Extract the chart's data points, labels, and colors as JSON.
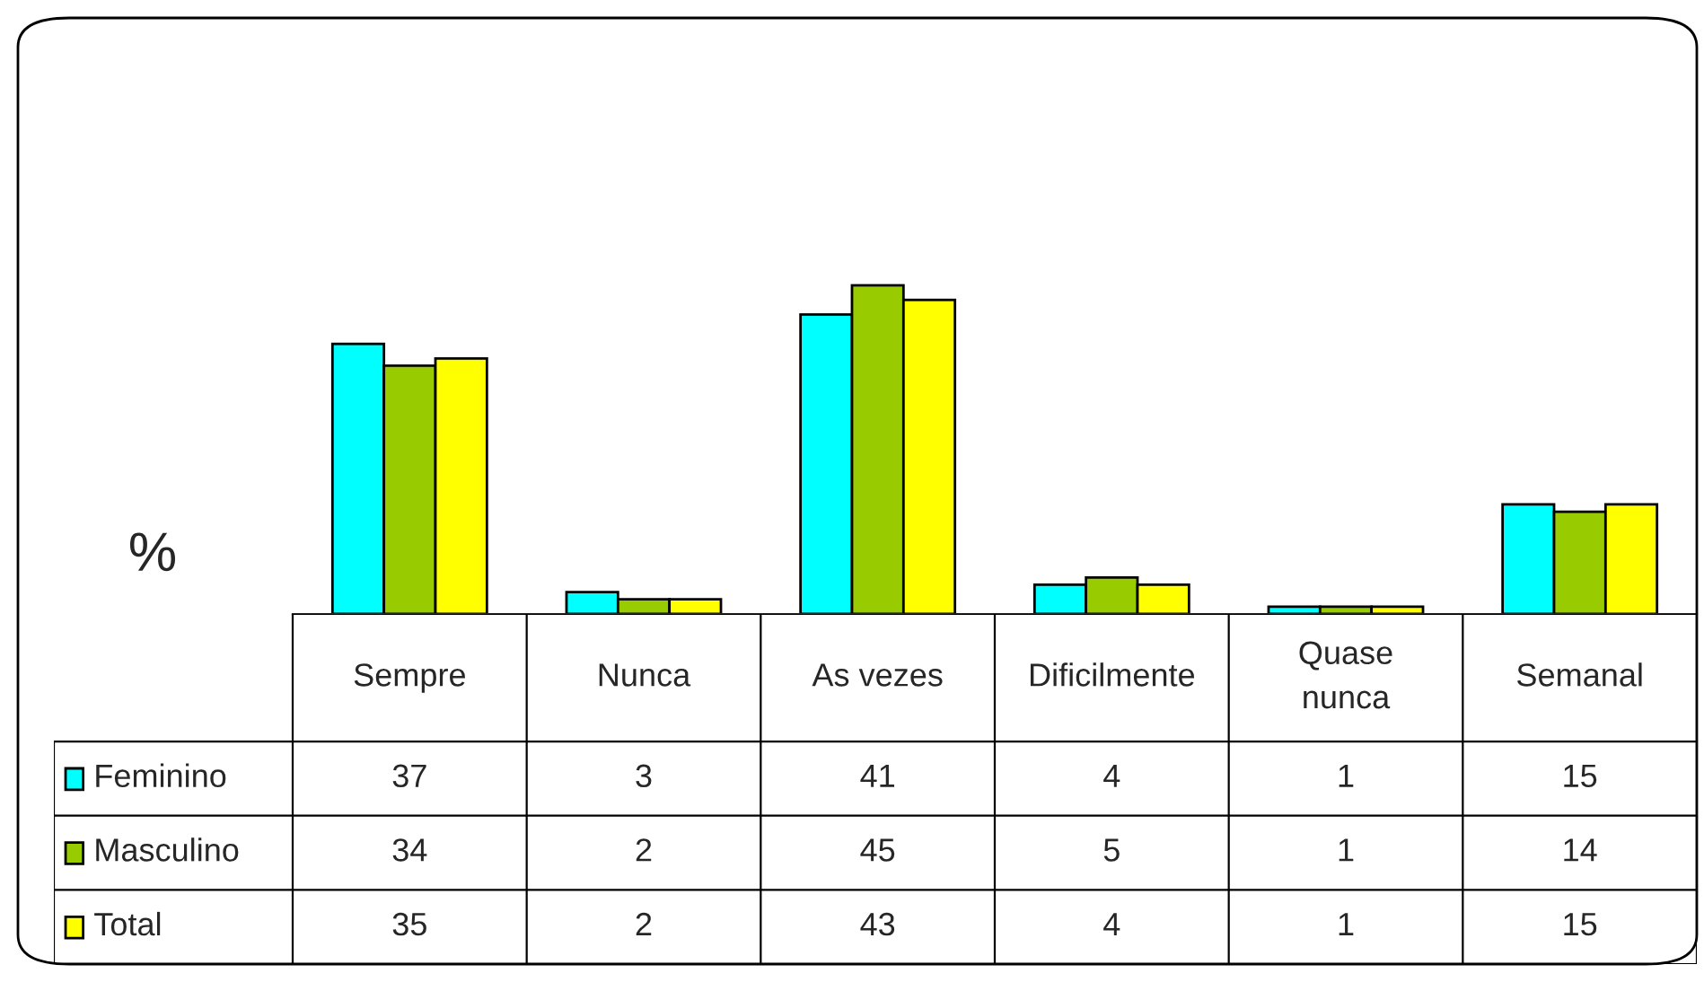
{
  "chart_data": {
    "type": "bar",
    "ylabel": "%",
    "categories": [
      "Sempre",
      "Nunca",
      "As vezes",
      "Dificilmente",
      "Quase nunca",
      "Semanal"
    ],
    "series": [
      {
        "name": "Feminino",
        "color": "#00ffff",
        "values": [
          37,
          3,
          41,
          4,
          1,
          15
        ]
      },
      {
        "name": "Masculino",
        "color": "#99cc00",
        "values": [
          34,
          2,
          45,
          5,
          1,
          14
        ]
      },
      {
        "name": "Total",
        "color": "#ffff00",
        "values": [
          35,
          2,
          43,
          4,
          1,
          15
        ]
      }
    ],
    "data_labels": true,
    "legend": "bottom left"
  }
}
